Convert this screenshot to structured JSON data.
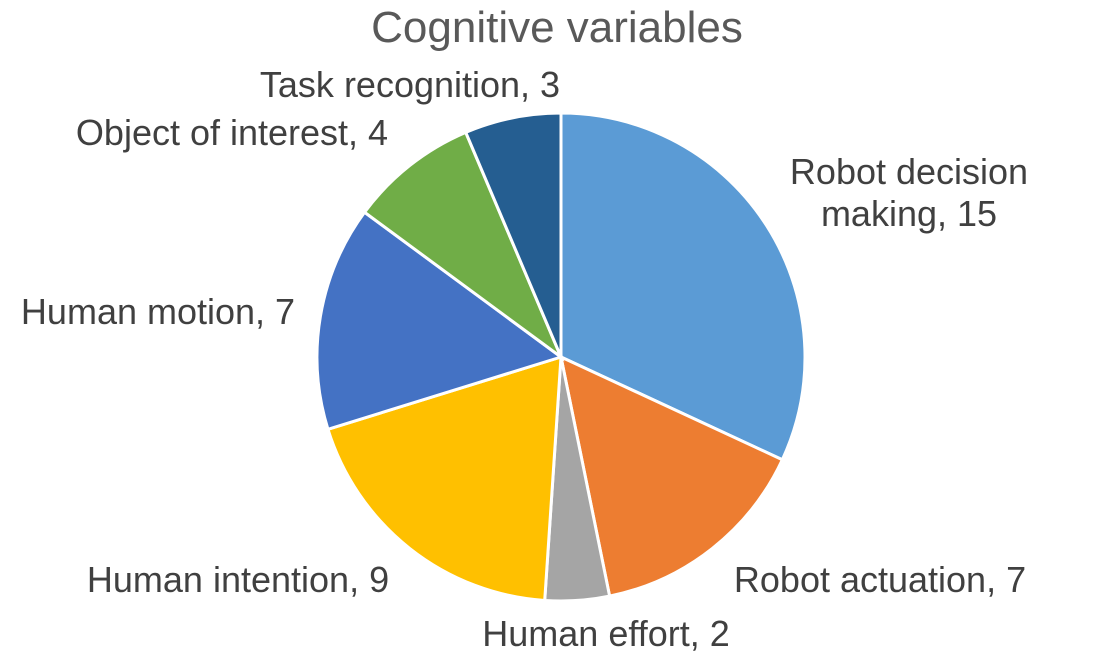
{
  "chart_data": {
    "type": "pie",
    "title": "Cognitive variables",
    "labels": [
      "Robot decision making, 15",
      "Robot actuation, 7",
      "Human effort, 2",
      "Human intention, 9",
      "Human motion, 7",
      "Object of interest, 4",
      "Task recognition, 3"
    ],
    "values": [
      15,
      7,
      2,
      9,
      7,
      4,
      3
    ],
    "colors": [
      "#5b9bd5",
      "#ed7d31",
      "#a5a5a5",
      "#ffc000",
      "#4472c4",
      "#70ad47",
      "#255e91"
    ]
  }
}
